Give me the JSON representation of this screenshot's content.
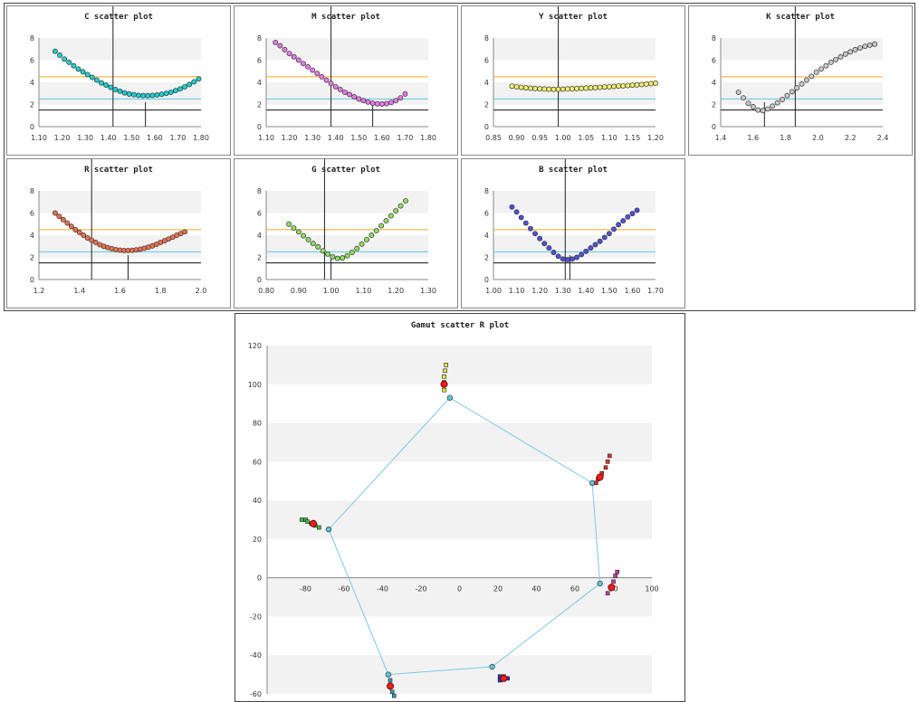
{
  "colors": {
    "orange_line": "#f5a623",
    "cyan_line": "#5bc8e0",
    "black_line": "#111111",
    "band": "#f2f2f2",
    "polygon": "#7ec8e6"
  },
  "chart_data": [
    {
      "id": "c",
      "type": "scatter",
      "title": "C scatter plot",
      "x_ticks": [
        "1.10",
        "1.20",
        "1.30",
        "1.40",
        "1.50",
        "1.60",
        "1.70",
        "1.80"
      ],
      "xlim": [
        1.1,
        1.8
      ],
      "ylim": [
        0,
        8
      ],
      "y_ticks": [
        "0",
        "2",
        "4",
        "6",
        "8"
      ],
      "marker_color": "#19d3d3",
      "x": [
        1.17,
        1.19,
        1.21,
        1.23,
        1.25,
        1.27,
        1.29,
        1.31,
        1.33,
        1.35,
        1.37,
        1.39,
        1.41,
        1.43,
        1.45,
        1.47,
        1.49,
        1.51,
        1.53,
        1.55,
        1.57,
        1.59,
        1.61,
        1.63,
        1.65,
        1.67,
        1.69,
        1.71,
        1.73,
        1.75,
        1.77,
        1.79
      ],
      "y": [
        6.8,
        6.45,
        6.1,
        5.8,
        5.5,
        5.2,
        4.95,
        4.7,
        4.45,
        4.2,
        3.95,
        3.75,
        3.55,
        3.35,
        3.2,
        3.05,
        2.95,
        2.88,
        2.82,
        2.8,
        2.8,
        2.82,
        2.86,
        2.92,
        3.0,
        3.1,
        3.25,
        3.4,
        3.6,
        3.8,
        4.05,
        4.3
      ],
      "ref_lines": [
        4.5,
        2.5,
        1.5
      ],
      "vlines": [
        {
          "x": 1.42,
          "full": true
        },
        {
          "x": 1.56,
          "full": false
        }
      ]
    },
    {
      "id": "m",
      "type": "scatter",
      "title": "M scatter plot",
      "x_ticks": [
        "1.10",
        "1.20",
        "1.30",
        "1.40",
        "1.50",
        "1.60",
        "1.70",
        "1.80"
      ],
      "xlim": [
        1.1,
        1.8
      ],
      "ylim": [
        0,
        8
      ],
      "y_ticks": [
        "0",
        "2",
        "4",
        "6",
        "8"
      ],
      "marker_color": "#e879e8",
      "x": [
        1.14,
        1.16,
        1.18,
        1.2,
        1.22,
        1.24,
        1.26,
        1.28,
        1.3,
        1.32,
        1.34,
        1.36,
        1.38,
        1.4,
        1.42,
        1.44,
        1.46,
        1.48,
        1.5,
        1.52,
        1.54,
        1.56,
        1.58,
        1.6,
        1.62,
        1.64,
        1.66,
        1.68,
        1.7
      ],
      "y": [
        7.6,
        7.3,
        6.95,
        6.6,
        6.3,
        6.0,
        5.7,
        5.4,
        5.1,
        4.8,
        4.5,
        4.2,
        3.9,
        3.6,
        3.35,
        3.1,
        2.9,
        2.7,
        2.5,
        2.35,
        2.22,
        2.12,
        2.06,
        2.04,
        2.08,
        2.18,
        2.35,
        2.6,
        2.95
      ],
      "ref_lines": [
        4.5,
        2.5,
        1.5
      ],
      "vlines": [
        {
          "x": 1.38,
          "full": true
        },
        {
          "x": 1.56,
          "full": false
        }
      ]
    },
    {
      "id": "y",
      "type": "scatter",
      "title": "Y scatter plot",
      "x_ticks": [
        "0.85",
        "0.90",
        "0.95",
        "1.00",
        "1.05",
        "1.10",
        "1.15",
        "1.20"
      ],
      "xlim": [
        0.85,
        1.2
      ],
      "ylim": [
        0,
        8
      ],
      "y_ticks": [
        "0",
        "2",
        "4",
        "6",
        "8"
      ],
      "marker_color": "#f2f06e",
      "x": [
        0.89,
        0.9,
        0.91,
        0.92,
        0.93,
        0.94,
        0.95,
        0.96,
        0.97,
        0.98,
        0.99,
        1.0,
        1.01,
        1.02,
        1.03,
        1.04,
        1.05,
        1.06,
        1.07,
        1.08,
        1.09,
        1.1,
        1.11,
        1.12,
        1.13,
        1.14,
        1.15,
        1.16,
        1.17,
        1.18,
        1.19,
        1.2
      ],
      "y": [
        3.65,
        3.6,
        3.55,
        3.5,
        3.47,
        3.44,
        3.42,
        3.4,
        3.38,
        3.37,
        3.37,
        3.38,
        3.4,
        3.42,
        3.44,
        3.46,
        3.48,
        3.5,
        3.52,
        3.55,
        3.58,
        3.6,
        3.63,
        3.66,
        3.68,
        3.71,
        3.74,
        3.77,
        3.8,
        3.84,
        3.88,
        3.92
      ],
      "ref_lines": [
        4.5,
        2.5,
        1.5
      ],
      "vlines": [
        {
          "x": 0.99,
          "full": true
        }
      ]
    },
    {
      "id": "k",
      "type": "scatter",
      "title": "K scatter plot",
      "x_ticks": [
        "1.4",
        "1.6",
        "1.8",
        "2.0",
        "2.2",
        "2.4"
      ],
      "xlim": [
        1.4,
        2.4
      ],
      "ylim": [
        0,
        8
      ],
      "y_ticks": [
        "0",
        "2",
        "4",
        "6",
        "8"
      ],
      "marker_color": "#c8c8c8",
      "x": [
        1.51,
        1.54,
        1.57,
        1.6,
        1.63,
        1.66,
        1.69,
        1.72,
        1.75,
        1.78,
        1.81,
        1.84,
        1.87,
        1.9,
        1.93,
        1.96,
        1.99,
        2.02,
        2.05,
        2.08,
        2.11,
        2.14,
        2.17,
        2.2,
        2.23,
        2.26,
        2.29,
        2.32,
        2.35
      ],
      "y": [
        3.1,
        2.6,
        2.1,
        1.8,
        1.5,
        1.45,
        1.6,
        1.85,
        2.15,
        2.45,
        2.8,
        3.15,
        3.5,
        3.85,
        4.2,
        4.55,
        4.9,
        5.2,
        5.5,
        5.8,
        6.05,
        6.3,
        6.55,
        6.75,
        6.95,
        7.1,
        7.25,
        7.35,
        7.45
      ],
      "ref_lines": [
        4.5,
        2.5,
        1.5
      ],
      "vlines": [
        {
          "x": 1.86,
          "full": true
        },
        {
          "x": 1.67,
          "full": false
        }
      ]
    },
    {
      "id": "r",
      "type": "scatter",
      "title": "R scatter plot",
      "x_ticks": [
        "1.2",
        "1.4",
        "1.6",
        "1.8",
        "2.0"
      ],
      "xlim": [
        1.2,
        2.0
      ],
      "ylim": [
        0,
        8
      ],
      "y_ticks": [
        "0",
        "2",
        "4",
        "6",
        "8"
      ],
      "marker_color": "#f07050",
      "x": [
        1.28,
        1.3,
        1.32,
        1.34,
        1.36,
        1.38,
        1.4,
        1.42,
        1.44,
        1.46,
        1.48,
        1.5,
        1.52,
        1.54,
        1.56,
        1.58,
        1.6,
        1.62,
        1.64,
        1.66,
        1.68,
        1.7,
        1.72,
        1.74,
        1.76,
        1.78,
        1.8,
        1.82,
        1.84,
        1.86,
        1.88,
        1.9,
        1.92
      ],
      "y": [
        6.0,
        5.7,
        5.4,
        5.1,
        4.8,
        4.5,
        4.25,
        4.0,
        3.75,
        3.55,
        3.35,
        3.15,
        3.0,
        2.88,
        2.78,
        2.7,
        2.65,
        2.62,
        2.62,
        2.64,
        2.68,
        2.74,
        2.82,
        2.92,
        3.04,
        3.18,
        3.34,
        3.5,
        3.66,
        3.82,
        4.0,
        4.15,
        4.3
      ],
      "ref_lines": [
        4.5,
        2.5,
        1.5
      ],
      "vlines": [
        {
          "x": 1.46,
          "full": true
        },
        {
          "x": 1.64,
          "full": false
        }
      ]
    },
    {
      "id": "g",
      "type": "scatter",
      "title": "G scatter plot",
      "x_ticks": [
        "0.80",
        "0.90",
        "1.00",
        "1.10",
        "1.20",
        "1.30"
      ],
      "xlim": [
        0.8,
        1.3
      ],
      "ylim": [
        0,
        8
      ],
      "y_ticks": [
        "0",
        "2",
        "4",
        "6",
        "8"
      ],
      "marker_color": "#90e060",
      "x": [
        0.87,
        0.885,
        0.9,
        0.915,
        0.93,
        0.945,
        0.96,
        0.975,
        0.99,
        1.005,
        1.02,
        1.035,
        1.05,
        1.065,
        1.08,
        1.095,
        1.11,
        1.125,
        1.14,
        1.155,
        1.17,
        1.185,
        1.2,
        1.215,
        1.23
      ],
      "y": [
        5.0,
        4.65,
        4.3,
        3.95,
        3.6,
        3.25,
        2.95,
        2.6,
        2.3,
        2.05,
        1.9,
        1.95,
        2.15,
        2.45,
        2.8,
        3.2,
        3.6,
        4.0,
        4.4,
        4.85,
        5.3,
        5.75,
        6.2,
        6.65,
        7.1
      ],
      "ref_lines": [
        4.5,
        2.5,
        1.5
      ],
      "vlines": [
        {
          "x": 0.98,
          "full": true
        },
        {
          "x": 1.0,
          "full": false
        }
      ]
    },
    {
      "id": "b",
      "type": "scatter",
      "title": "B scatter plot",
      "x_ticks": [
        "1.00",
        "1.10",
        "1.20",
        "1.30",
        "1.40",
        "1.50",
        "1.60",
        "1.70"
      ],
      "xlim": [
        1.0,
        1.7
      ],
      "ylim": [
        0,
        8
      ],
      "y_ticks": [
        "0",
        "2",
        "4",
        "6",
        "8"
      ],
      "marker_color": "#5050e0",
      "x": [
        1.08,
        1.1,
        1.12,
        1.14,
        1.16,
        1.18,
        1.2,
        1.22,
        1.24,
        1.26,
        1.28,
        1.3,
        1.32,
        1.34,
        1.36,
        1.38,
        1.4,
        1.42,
        1.44,
        1.46,
        1.48,
        1.5,
        1.52,
        1.54,
        1.56,
        1.58,
        1.6,
        1.62
      ],
      "y": [
        6.55,
        6.1,
        5.6,
        5.1,
        4.6,
        4.15,
        3.7,
        3.25,
        2.85,
        2.45,
        2.1,
        1.85,
        1.8,
        1.85,
        2.0,
        2.25,
        2.55,
        2.85,
        3.15,
        3.45,
        3.8,
        4.15,
        4.55,
        4.95,
        5.3,
        5.65,
        5.95,
        6.25
      ],
      "ref_lines": [
        4.5,
        2.5,
        1.5
      ],
      "vlines": [
        {
          "x": 1.31,
          "full": true
        },
        {
          "x": 1.33,
          "full": false
        }
      ]
    },
    {
      "id": "gamut",
      "type": "scatter",
      "title": "Gamut scatter R plot",
      "xlim": [
        -100,
        100
      ],
      "ylim": [
        -60,
        120
      ],
      "x_ticks": [
        "-80",
        "-60",
        "-40",
        "-20",
        "0",
        "20",
        "40",
        "60",
        "80",
        "100"
      ],
      "x_tick_values": [
        -80,
        -60,
        -40,
        -20,
        0,
        20,
        40,
        60,
        80,
        100
      ],
      "y_ticks": [
        "-60",
        "-40",
        "-20",
        "0",
        "20",
        "40",
        "60",
        "80",
        "100",
        "120"
      ],
      "y_tick_values": [
        -60,
        -40,
        -20,
        0,
        20,
        40,
        60,
        80,
        100,
        120
      ],
      "polygon": [
        [
          -5,
          93
        ],
        [
          69,
          49
        ],
        [
          73,
          -3
        ],
        [
          17,
          -46
        ],
        [
          -37,
          -50
        ],
        [
          -68,
          25
        ]
      ],
      "clusters": [
        {
          "color": "#e8e840",
          "points": [
            [
              -7,
              110
            ],
            [
              -7.5,
              107
            ],
            [
              -8,
              104
            ],
            [
              -8,
              101
            ],
            [
              -8,
              97
            ]
          ],
          "red": [
            -8,
            100
          ]
        },
        {
          "color": "#e03030",
          "points": [
            [
              78,
              63
            ],
            [
              77,
              60
            ],
            [
              76,
              57
            ],
            [
              74,
              54
            ],
            [
              72,
              51
            ],
            [
              71,
              49
            ]
          ],
          "red": [
            73,
            52
          ]
        },
        {
          "color": "#c040a0",
          "points": [
            [
              82,
              3
            ],
            [
              81,
              1
            ],
            [
              80,
              -2
            ],
            [
              79,
              -5
            ],
            [
              77,
              -8
            ]
          ],
          "red": [
            79,
            -5
          ]
        },
        {
          "color": "#3030c0",
          "points": [
            [
              21,
              -51
            ],
            [
              23,
              -51
            ],
            [
              25,
              -52
            ],
            [
              21,
              -53
            ]
          ],
          "red": [
            23,
            -52
          ]
        },
        {
          "color": "#30a0c0",
          "points": [
            [
              -36,
              -53
            ],
            [
              -36,
              -56
            ],
            [
              -35,
              -59
            ],
            [
              -34,
              -61
            ]
          ],
          "red": [
            -36,
            -56
          ]
        },
        {
          "color": "#40c040",
          "points": [
            [
              -82,
              30
            ],
            [
              -80,
              30
            ],
            [
              -79,
              29
            ],
            [
              -77,
              28
            ],
            [
              -75,
              27
            ],
            [
              -73,
              26
            ]
          ],
          "red": [
            -76,
            28
          ]
        }
      ]
    }
  ]
}
